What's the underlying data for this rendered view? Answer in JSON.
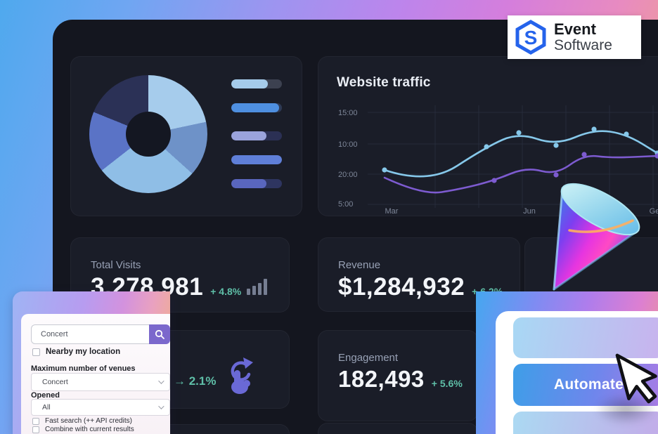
{
  "logo": {
    "line1": "Event",
    "line2": "Software"
  },
  "colors": {
    "accent_positive": "#5FBFA8",
    "search_button": "#7B68CC",
    "line_series_a": "#86C8EA",
    "line_series_b": "#7D5BD0",
    "automate_gradient_start": "#3E9EE8",
    "automate_gradient_end": "#AB7BE4"
  },
  "stats": {
    "visits": {
      "label": "Total Visits",
      "value": "3,278,981",
      "delta": "+ 4.8%"
    },
    "revenue": {
      "label": "Revenue",
      "value": "$1,284,932",
      "delta": "+ 6.2%"
    },
    "engagement": {
      "label": "Engagement",
      "value": "182,493",
      "delta": "+ 5.6%"
    },
    "gesture": {
      "delta": "→ 2.1%"
    }
  },
  "search_panel": {
    "query_value": "Concert",
    "nearby_label": "Nearby my location",
    "max_venues_label": "Maximum number of venues",
    "max_venues_value": "Concert",
    "opened_label": "Opened",
    "opened_value": "All",
    "fast_search_label": "Fast search (++ API credits)",
    "combine_label": "Combine with current results"
  },
  "automate_panel": {
    "button_label": "Automate"
  },
  "chart_data": [
    {
      "type": "pie",
      "style": "donut",
      "slices": [
        {
          "color": "#A6CCEC",
          "start_deg": 0,
          "end_deg": 78
        },
        {
          "color": "#6E92C8",
          "start_deg": 78,
          "end_deg": 132
        },
        {
          "color": "#8FBEE6",
          "start_deg": 132,
          "end_deg": 232
        },
        {
          "color": "#5A73C6",
          "start_deg": 232,
          "end_deg": 292
        },
        {
          "color": "#2B3156",
          "start_deg": 292,
          "end_deg": 360
        }
      ],
      "legend_bars": [
        {
          "fill": "#A5CBEA",
          "track": "#3C4150",
          "pct": 72
        },
        {
          "fill": "#4E8FE0",
          "track": "#2E3A55",
          "pct": 95
        },
        {
          "fill": "#9AA3DC",
          "track": "#2B3054",
          "pct": 70
        },
        {
          "fill": "#5F7FD8",
          "track": "#2B3054",
          "pct": 100
        },
        {
          "fill": "#5966BE",
          "track": "#2E3560",
          "pct": 70
        }
      ]
    },
    {
      "type": "line",
      "title": "Website traffic",
      "y_ticks": [
        "15:00",
        "10:00",
        "20:00",
        "5:00"
      ],
      "x_ticks": [
        "Mar",
        "Jun",
        "Ge"
      ],
      "grid": true,
      "legend_position": "none",
      "units": "px-in-474x168-plot",
      "series": [
        {
          "name": "series-a",
          "color": "#86C8EA",
          "points": [
            [
              84,
              106
            ],
            [
              146,
              127
            ],
            [
              229,
              73
            ],
            [
              275,
              53
            ],
            [
              328,
              71
            ],
            [
              382,
              48
            ],
            [
              428,
              55
            ],
            [
              472,
              82
            ]
          ],
          "markers": [
            0,
            2,
            3,
            4,
            5,
            6,
            7
          ]
        },
        {
          "name": "series-b",
          "color": "#7D5BD0",
          "points": [
            [
              84,
              117
            ],
            [
              138,
              142
            ],
            [
              193,
              133
            ],
            [
              240,
              121
            ],
            [
              286,
              102
            ],
            [
              328,
              113
            ],
            [
              368,
              84
            ],
            [
              406,
              89
            ],
            [
              472,
              86
            ]
          ],
          "markers": [
            3,
            5,
            6,
            8
          ]
        }
      ]
    }
  ]
}
